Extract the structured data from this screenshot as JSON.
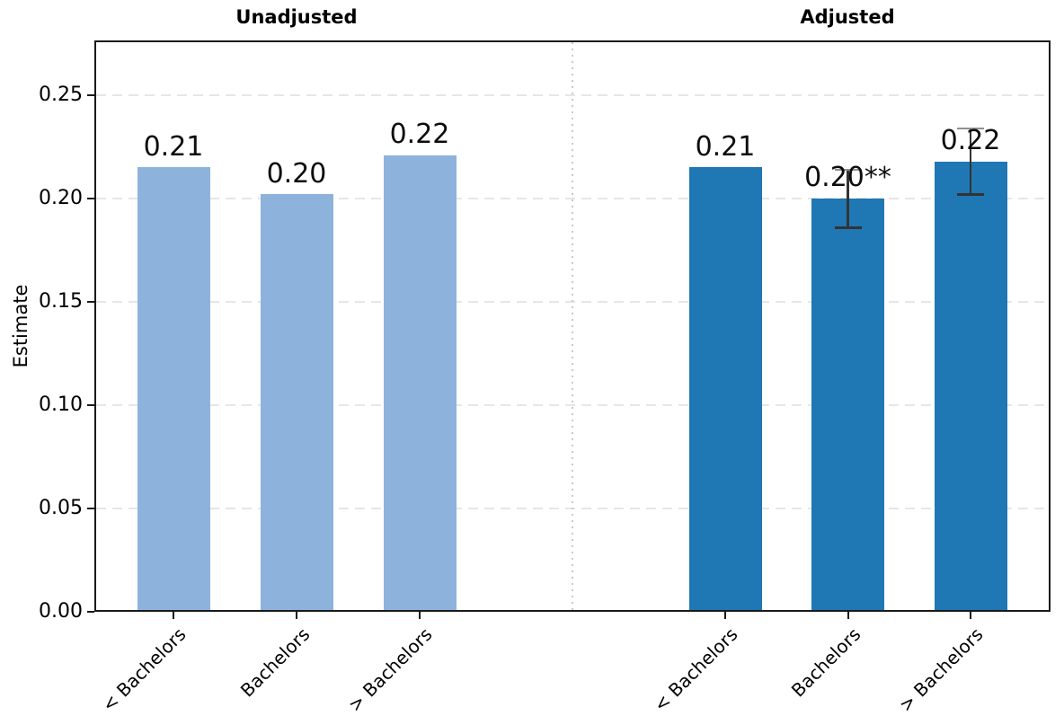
{
  "chart_data": {
    "type": "bar",
    "ylabel": "Estimate",
    "ylim": [
      0,
      0.2765
    ],
    "yticks": [
      0,
      0.05,
      0.1,
      0.15,
      0.2,
      0.25
    ],
    "ytick_labels": [
      "0.00",
      "0.05",
      "0.10",
      "0.15",
      "0.20",
      "0.25"
    ],
    "categories": [
      "< Bachelors",
      "Bachelors",
      "> Bachelors"
    ],
    "grid": "horizontal-dashed",
    "legend_position": "none",
    "panels": [
      {
        "title": "Unadjusted",
        "bar_color": "#8db3dd",
        "bars": [
          {
            "category": "< Bachelors",
            "value": 0.215,
            "label": "0.21",
            "error_low": null,
            "error_high": null
          },
          {
            "category": "Bachelors",
            "value": 0.202,
            "label": "0.20",
            "error_low": null,
            "error_high": null
          },
          {
            "category": "> Bachelors",
            "value": 0.221,
            "label": "0.22",
            "error_low": null,
            "error_high": null
          }
        ]
      },
      {
        "title": "Adjusted",
        "bar_color": "#1f77b4",
        "bars": [
          {
            "category": "< Bachelors",
            "value": 0.215,
            "label": "0.21",
            "error_low": null,
            "error_high": null
          },
          {
            "category": "Bachelors",
            "value": 0.2,
            "label": "0.20**",
            "error_low": 0.186,
            "error_high": 0.214
          },
          {
            "category": "> Bachelors",
            "value": 0.218,
            "label": "0.22",
            "error_low": 0.202,
            "error_high": 0.234
          }
        ]
      }
    ],
    "colors": {
      "unadjusted_bar": "#8db3dd",
      "adjusted_bar": "#1f77b4",
      "gridline": "#e6e6e6",
      "panel_divider": "#c9c9c9",
      "axis_spine": "#1a1a1a",
      "error_bar": "#333333",
      "error_cap_top": "#909090"
    }
  }
}
